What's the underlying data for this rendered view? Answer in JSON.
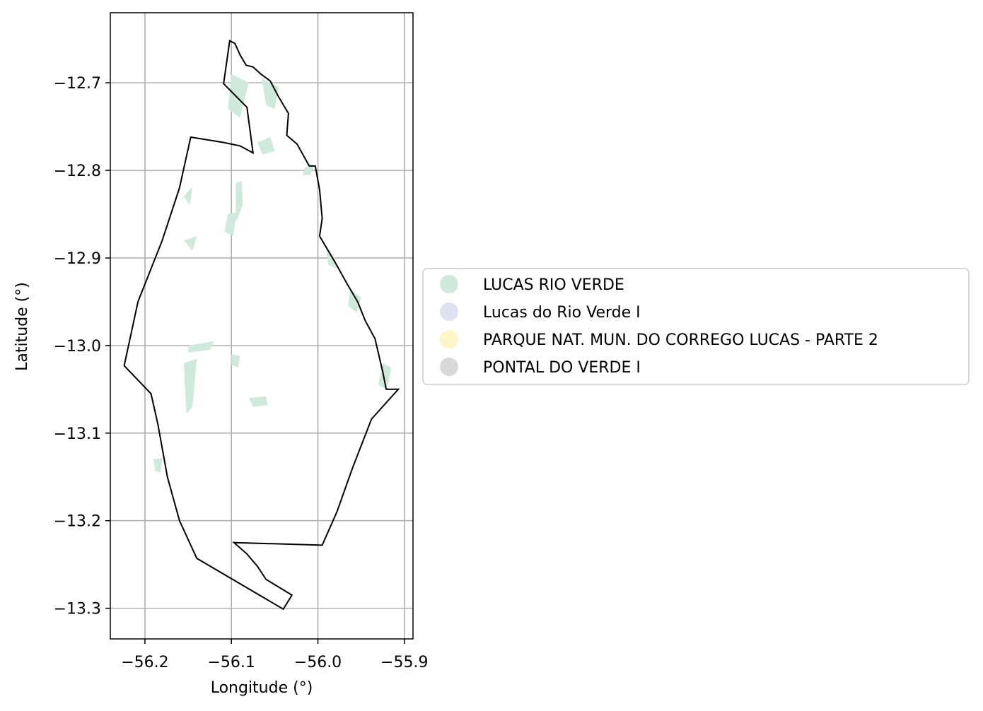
{
  "chart_data": {
    "type": "map",
    "xlabel": "Longitude (°)",
    "ylabel": "Latitude (°)",
    "xlim": [
      -56.24,
      -55.89
    ],
    "ylim": [
      -13.335,
      -12.62
    ],
    "xticks": [
      -56.2,
      -56.1,
      -56.0,
      -55.9
    ],
    "xtick_labels": [
      "−56.2",
      "−56.1",
      "−56.0",
      "−55.9"
    ],
    "yticks": [
      -12.7,
      -12.8,
      -12.9,
      -13.0,
      -13.1,
      -13.2,
      -13.3
    ],
    "ytick_labels": [
      "−12.7",
      "−12.8",
      "−12.9",
      "−13.0",
      "−13.1",
      "−13.2",
      "−13.3"
    ],
    "grid": true,
    "boundary_color": "#000000",
    "boundary": [
      [
        -56.102,
        -12.652
      ],
      [
        -56.096,
        -12.655
      ],
      [
        -56.09,
        -12.668
      ],
      [
        -56.083,
        -12.68
      ],
      [
        -56.075,
        -12.682
      ],
      [
        -56.066,
        -12.69
      ],
      [
        -56.055,
        -12.698
      ],
      [
        -56.046,
        -12.715
      ],
      [
        -56.034,
        -12.735
      ],
      [
        -56.036,
        -12.76
      ],
      [
        -56.024,
        -12.77
      ],
      [
        -56.01,
        -12.795
      ],
      [
        -56.003,
        -12.795
      ],
      [
        -55.998,
        -12.822
      ],
      [
        -55.995,
        -12.855
      ],
      [
        -55.998,
        -12.875
      ],
      [
        -55.98,
        -12.905
      ],
      [
        -55.966,
        -12.93
      ],
      [
        -55.954,
        -12.95
      ],
      [
        -55.945,
        -12.972
      ],
      [
        -55.934,
        -12.992
      ],
      [
        -55.925,
        -13.03
      ],
      [
        -55.921,
        -13.05
      ],
      [
        -55.907,
        -13.05
      ],
      [
        -55.938,
        -13.084
      ],
      [
        -55.96,
        -13.14
      ],
      [
        -55.978,
        -13.19
      ],
      [
        -55.995,
        -13.228
      ],
      [
        -56.097,
        -13.225
      ],
      [
        -56.082,
        -13.238
      ],
      [
        -56.07,
        -13.252
      ],
      [
        -56.06,
        -13.267
      ],
      [
        -56.03,
        -13.285
      ],
      [
        -56.04,
        -13.301
      ],
      [
        -56.14,
        -13.243
      ],
      [
        -56.16,
        -13.2
      ],
      [
        -56.174,
        -13.15
      ],
      [
        -56.185,
        -13.09
      ],
      [
        -56.193,
        -13.055
      ],
      [
        -56.224,
        -13.023
      ],
      [
        -56.208,
        -12.95
      ],
      [
        -56.18,
        -12.88
      ],
      [
        -56.16,
        -12.82
      ],
      [
        -56.147,
        -12.762
      ],
      [
        -56.11,
        -12.768
      ],
      [
        -56.09,
        -12.772
      ],
      [
        -56.075,
        -12.78
      ],
      [
        -56.082,
        -12.728
      ],
      [
        -56.109,
        -12.701
      ],
      [
        -56.102,
        -12.652
      ]
    ],
    "series": [
      {
        "name": "LUCAS RIO VERDE",
        "color": "#cfeadc"
      },
      {
        "name": "Lucas do Rio Verde I",
        "color": "#dde1f0"
      },
      {
        "name": "PARQUE NAT. MUN. DO CORREGO LUCAS - PARTE 2",
        "color": "#fff5c7"
      },
      {
        "name": "PONTAL DO VERDE I",
        "color": "#d9d9d9"
      }
    ],
    "legend_position": "center-right",
    "fill_patches": [
      [
        [
          -56.1,
          -12.69
        ],
        [
          -56.08,
          -12.7
        ],
        [
          -56.09,
          -12.74
        ],
        [
          -56.104,
          -12.73
        ]
      ],
      [
        [
          -56.065,
          -12.695
        ],
        [
          -56.045,
          -12.705
        ],
        [
          -56.05,
          -12.73
        ],
        [
          -56.06,
          -12.725
        ]
      ],
      [
        [
          -56.07,
          -12.768
        ],
        [
          -56.055,
          -12.762
        ],
        [
          -56.05,
          -12.778
        ],
        [
          -56.064,
          -12.782
        ]
      ],
      [
        [
          -56.015,
          -12.797
        ],
        [
          -56.005,
          -12.793
        ],
        [
          -56.008,
          -12.805
        ],
        [
          -56.018,
          -12.806
        ]
      ],
      [
        [
          -56.155,
          -12.83
        ],
        [
          -56.145,
          -12.818
        ],
        [
          -56.148,
          -12.84
        ]
      ],
      [
        [
          -56.155,
          -12.88
        ],
        [
          -56.14,
          -12.875
        ],
        [
          -56.145,
          -12.892
        ]
      ],
      [
        [
          -56.095,
          -12.815
        ],
        [
          -56.088,
          -12.812
        ],
        [
          -56.087,
          -12.84
        ],
        [
          -56.095,
          -12.86
        ]
      ],
      [
        [
          -56.104,
          -12.85
        ],
        [
          -56.094,
          -12.848
        ],
        [
          -56.098,
          -12.875
        ],
        [
          -56.108,
          -12.87
        ]
      ],
      [
        [
          -55.99,
          -12.89
        ],
        [
          -55.98,
          -12.9
        ],
        [
          -55.978,
          -12.912
        ],
        [
          -55.988,
          -12.908
        ]
      ],
      [
        [
          -55.963,
          -12.935
        ],
        [
          -55.95,
          -12.945
        ],
        [
          -55.955,
          -12.962
        ],
        [
          -55.965,
          -12.955
        ]
      ],
      [
        [
          -55.925,
          -13.02
        ],
        [
          -55.915,
          -13.025
        ],
        [
          -55.92,
          -13.05
        ],
        [
          -55.93,
          -13.045
        ]
      ],
      [
        [
          -56.15,
          -13.0
        ],
        [
          -56.12,
          -12.995
        ],
        [
          -56.125,
          -13.005
        ],
        [
          -56.15,
          -13.008
        ]
      ],
      [
        [
          -56.155,
          -13.02
        ],
        [
          -56.14,
          -13.015
        ],
        [
          -56.145,
          -13.07
        ],
        [
          -56.152,
          -13.078
        ]
      ],
      [
        [
          -56.1,
          -13.01
        ],
        [
          -56.09,
          -13.012
        ],
        [
          -56.092,
          -13.025
        ],
        [
          -56.1,
          -13.022
        ]
      ],
      [
        [
          -56.08,
          -13.06
        ],
        [
          -56.06,
          -13.058
        ],
        [
          -56.058,
          -13.068
        ],
        [
          -56.075,
          -13.07
        ]
      ],
      [
        [
          -56.19,
          -13.13
        ],
        [
          -56.18,
          -13.128
        ],
        [
          -56.182,
          -13.145
        ],
        [
          -56.188,
          -13.143
        ]
      ]
    ]
  }
}
